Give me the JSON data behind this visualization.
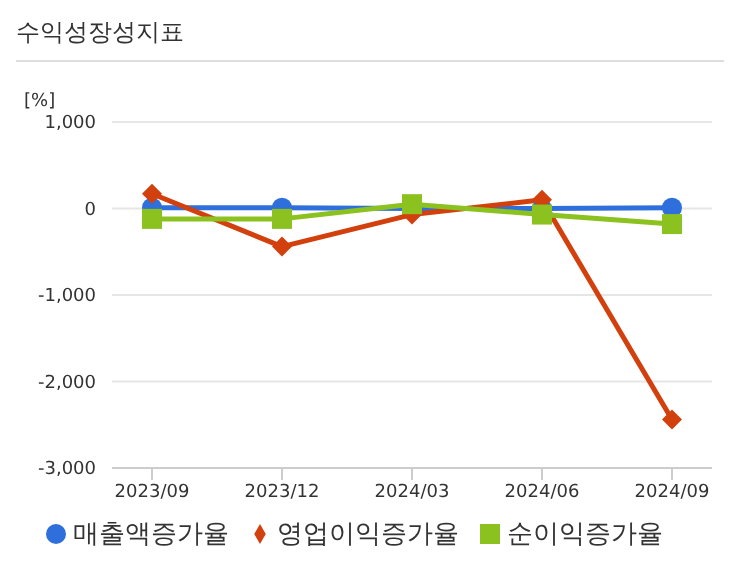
{
  "chart_data": {
    "type": "line",
    "title": "수익성장성지표",
    "ylabel": "[%]",
    "categories": [
      "2023/09",
      "2023/12",
      "2024/03",
      "2024/06",
      "2024/09"
    ],
    "series": [
      {
        "name": "매출액증가율",
        "color": "#2f6fdc",
        "marker": "circle",
        "values": [
          10,
          10,
          0,
          0,
          10
        ]
      },
      {
        "name": "영업이익증가율",
        "color": "#d2400e",
        "marker": "diamond",
        "values": [
          170,
          -440,
          -70,
          100,
          -2440
        ]
      },
      {
        "name": "순이익증가율",
        "color": "#8cc21f",
        "marker": "square",
        "values": [
          -120,
          -120,
          50,
          -70,
          -180
        ]
      }
    ],
    "ylim": [
      -3000,
      1000
    ],
    "yticks": [
      {
        "value": -3000,
        "label": "-3,000"
      },
      {
        "value": -2000,
        "label": "-2,000"
      },
      {
        "value": -1000,
        "label": "-1,000"
      },
      0,
      {
        "value": 1000,
        "label": "1,000"
      }
    ],
    "grid": "y",
    "legend": "bottom"
  }
}
